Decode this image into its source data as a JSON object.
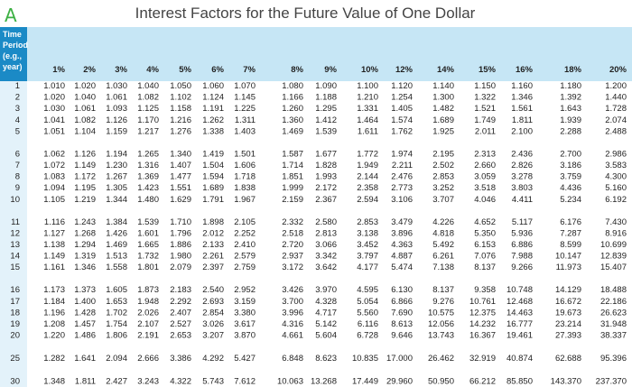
{
  "header": {
    "marker": "A",
    "title": "Interest Factors for the Future Value of One Dollar"
  },
  "table": {
    "columns": [
      "Time Period (e.g., year)",
      "1%",
      "2%",
      "3%",
      "4%",
      "5%",
      "6%",
      "7%",
      "8%",
      "9%",
      "10%",
      "12%",
      "14%",
      "15%",
      "16%",
      "18%",
      "20%"
    ],
    "rows": [
      [
        "1",
        "1.010",
        "1.020",
        "1.030",
        "1.040",
        "1.050",
        "1.060",
        "1.070",
        "1.080",
        "1.090",
        "1.100",
        "1.120",
        "1.140",
        "1.150",
        "1.160",
        "1.180",
        "1.200"
      ],
      [
        "2",
        "1.020",
        "1.040",
        "1.061",
        "1.082",
        "1.102",
        "1.124",
        "1.145",
        "1.166",
        "1.188",
        "1.210",
        "1.254",
        "1.300",
        "1.322",
        "1.346",
        "1.392",
        "1.440"
      ],
      [
        "3",
        "1.030",
        "1.061",
        "1.093",
        "1.125",
        "1.158",
        "1.191",
        "1.225",
        "1.260",
        "1.295",
        "1.331",
        "1.405",
        "1.482",
        "1.521",
        "1.561",
        "1.643",
        "1.728"
      ],
      [
        "4",
        "1.041",
        "1.082",
        "1.126",
        "1.170",
        "1.216",
        "1.262",
        "1.311",
        "1.360",
        "1.412",
        "1.464",
        "1.574",
        "1.689",
        "1.749",
        "1.811",
        "1.939",
        "2.074"
      ],
      [
        "5",
        "1.051",
        "1.104",
        "1.159",
        "1.217",
        "1.276",
        "1.338",
        "1.403",
        "1.469",
        "1.539",
        "1.611",
        "1.762",
        "1.925",
        "2.011",
        "2.100",
        "2.288",
        "2.488"
      ],
      [
        "6",
        "1.062",
        "1.126",
        "1.194",
        "1.265",
        "1.340",
        "1.419",
        "1.501",
        "1.587",
        "1.677",
        "1.772",
        "1.974",
        "2.195",
        "2.313",
        "2.436",
        "2.700",
        "2.986"
      ],
      [
        "7",
        "1.072",
        "1.149",
        "1.230",
        "1.316",
        "1.407",
        "1.504",
        "1.606",
        "1.714",
        "1.828",
        "1.949",
        "2.211",
        "2.502",
        "2.660",
        "2.826",
        "3.186",
        "3.583"
      ],
      [
        "8",
        "1.083",
        "1.172",
        "1.267",
        "1.369",
        "1.477",
        "1.594",
        "1.718",
        "1.851",
        "1.993",
        "2.144",
        "2.476",
        "2.853",
        "3.059",
        "3.278",
        "3.759",
        "4.300"
      ],
      [
        "9",
        "1.094",
        "1.195",
        "1.305",
        "1.423",
        "1.551",
        "1.689",
        "1.838",
        "1.999",
        "2.172",
        "2.358",
        "2.773",
        "3.252",
        "3.518",
        "3.803",
        "4.436",
        "5.160"
      ],
      [
        "10",
        "1.105",
        "1.219",
        "1.344",
        "1.480",
        "1.629",
        "1.791",
        "1.967",
        "2.159",
        "2.367",
        "2.594",
        "3.106",
        "3.707",
        "4.046",
        "4.411",
        "5.234",
        "6.192"
      ],
      [
        "11",
        "1.116",
        "1.243",
        "1.384",
        "1.539",
        "1.710",
        "1.898",
        "2.105",
        "2.332",
        "2.580",
        "2.853",
        "3.479",
        "4.226",
        "4.652",
        "5.117",
        "6.176",
        "7.430"
      ],
      [
        "12",
        "1.127",
        "1.268",
        "1.426",
        "1.601",
        "1.796",
        "2.012",
        "2.252",
        "2.518",
        "2.813",
        "3.138",
        "3.896",
        "4.818",
        "5.350",
        "5.936",
        "7.287",
        "8.916"
      ],
      [
        "13",
        "1.138",
        "1.294",
        "1.469",
        "1.665",
        "1.886",
        "2.133",
        "2.410",
        "2.720",
        "3.066",
        "3.452",
        "4.363",
        "5.492",
        "6.153",
        "6.886",
        "8.599",
        "10.699"
      ],
      [
        "14",
        "1.149",
        "1.319",
        "1.513",
        "1.732",
        "1.980",
        "2.261",
        "2.579",
        "2.937",
        "3.342",
        "3.797",
        "4.887",
        "6.261",
        "7.076",
        "7.988",
        "10.147",
        "12.839"
      ],
      [
        "15",
        "1.161",
        "1.346",
        "1.558",
        "1.801",
        "2.079",
        "2.397",
        "2.759",
        "3.172",
        "3.642",
        "4.177",
        "5.474",
        "7.138",
        "8.137",
        "9.266",
        "11.973",
        "15.407"
      ],
      [
        "16",
        "1.173",
        "1.373",
        "1.605",
        "1.873",
        "2.183",
        "2.540",
        "2.952",
        "3.426",
        "3.970",
        "4.595",
        "6.130",
        "8.137",
        "9.358",
        "10.748",
        "14.129",
        "18.488"
      ],
      [
        "17",
        "1.184",
        "1.400",
        "1.653",
        "1.948",
        "2.292",
        "2.693",
        "3.159",
        "3.700",
        "4.328",
        "5.054",
        "6.866",
        "9.276",
        "10.761",
        "12.468",
        "16.672",
        "22.186"
      ],
      [
        "18",
        "1.196",
        "1.428",
        "1.702",
        "2.026",
        "2.407",
        "2.854",
        "3.380",
        "3.996",
        "4.717",
        "5.560",
        "7.690",
        "10.575",
        "12.375",
        "14.463",
        "19.673",
        "26.623"
      ],
      [
        "19",
        "1.208",
        "1.457",
        "1.754",
        "2.107",
        "2.527",
        "3.026",
        "3.617",
        "4.316",
        "5.142",
        "6.116",
        "8.613",
        "12.056",
        "14.232",
        "16.777",
        "23.214",
        "31.948"
      ],
      [
        "20",
        "1.220",
        "1.486",
        "1.806",
        "2.191",
        "2.653",
        "3.207",
        "3.870",
        "4.661",
        "5.604",
        "6.728",
        "9.646",
        "13.743",
        "16.367",
        "19.461",
        "27.393",
        "38.337"
      ],
      [
        "25",
        "1.282",
        "1.641",
        "2.094",
        "2.666",
        "3.386",
        "4.292",
        "5.427",
        "6.848",
        "8.623",
        "10.835",
        "17.000",
        "26.462",
        "32.919",
        "40.874",
        "62.688",
        "95.396"
      ],
      [
        "30",
        "1.348",
        "1.811",
        "2.427",
        "3.243",
        "4.322",
        "5.743",
        "7.612",
        "10.063",
        "13.268",
        "17.449",
        "29.960",
        "50.950",
        "66.212",
        "85.850",
        "143.370",
        "237.370"
      ]
    ]
  }
}
